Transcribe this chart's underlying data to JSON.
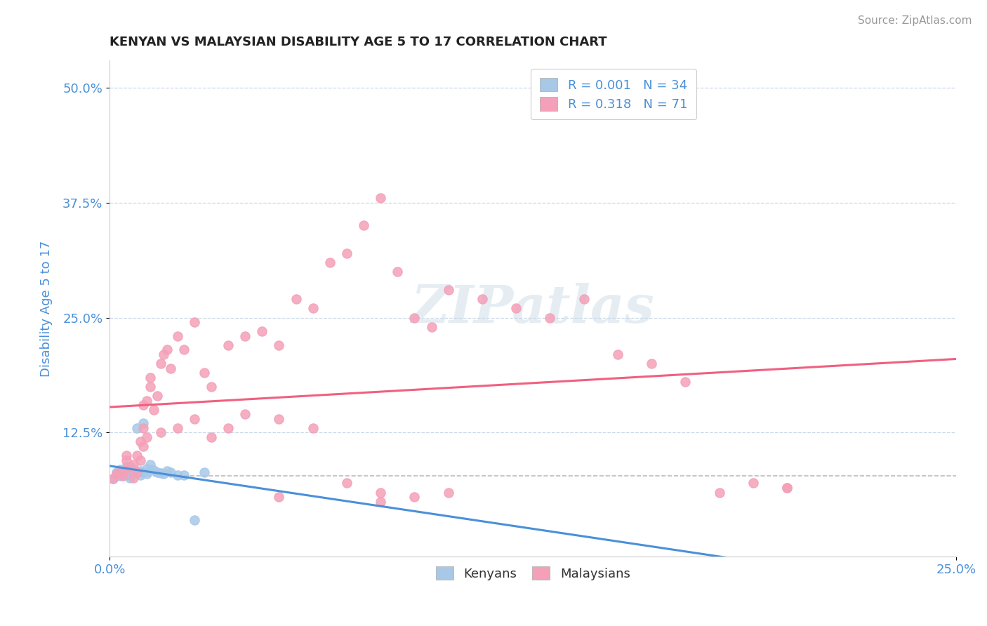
{
  "title": "KENYAN VS MALAYSIAN DISABILITY AGE 5 TO 17 CORRELATION CHART",
  "source": "Source: ZipAtlas.com",
  "xlabel_ticks": [
    "0.0%",
    "25.0%"
  ],
  "ylabel_ticks": [
    "12.5%",
    "25.0%",
    "37.5%",
    "50.0%"
  ],
  "ylabel_label": "Disability Age 5 to 17",
  "xlim": [
    0.0,
    0.25
  ],
  "ylim": [
    -0.01,
    0.53
  ],
  "legend_R1": "R = 0.001",
  "legend_N1": "N = 34",
  "legend_R2": "R = 0.318",
  "legend_N2": "N = 71",
  "kenyan_color": "#a8c8e8",
  "malaysian_color": "#f4a0b8",
  "kenyan_line_color": "#4a90d9",
  "malaysian_line_color": "#f06080",
  "title_color": "#222222",
  "axis_label_color": "#4a90d9",
  "tick_label_color": "#4a90d9",
  "background_color": "#ffffff",
  "grid_color": "#c8d8e8",
  "watermark_text": "ZIPatlas",
  "kenyan_x": [
    0.001,
    0.002,
    0.002,
    0.003,
    0.003,
    0.004,
    0.004,
    0.005,
    0.005,
    0.005,
    0.006,
    0.006,
    0.007,
    0.007,
    0.008,
    0.008,
    0.009,
    0.009,
    0.01,
    0.01,
    0.011,
    0.011,
    0.012,
    0.012,
    0.013,
    0.014,
    0.015,
    0.016,
    0.017,
    0.018,
    0.02,
    0.022,
    0.025,
    0.028
  ],
  "kenyan_y": [
    0.075,
    0.08,
    0.082,
    0.078,
    0.085,
    0.079,
    0.083,
    0.079,
    0.083,
    0.088,
    0.076,
    0.082,
    0.08,
    0.085,
    0.081,
    0.13,
    0.079,
    0.083,
    0.082,
    0.135,
    0.08,
    0.086,
    0.085,
    0.09,
    0.084,
    0.082,
    0.081,
    0.08,
    0.083,
    0.082,
    0.079,
    0.079,
    0.03,
    0.082
  ],
  "malaysian_x": [
    0.001,
    0.002,
    0.003,
    0.004,
    0.005,
    0.005,
    0.006,
    0.007,
    0.007,
    0.008,
    0.008,
    0.009,
    0.009,
    0.01,
    0.01,
    0.011,
    0.011,
    0.012,
    0.012,
    0.013,
    0.014,
    0.015,
    0.016,
    0.017,
    0.018,
    0.02,
    0.022,
    0.025,
    0.028,
    0.03,
    0.035,
    0.04,
    0.045,
    0.05,
    0.055,
    0.06,
    0.065,
    0.07,
    0.075,
    0.08,
    0.085,
    0.09,
    0.095,
    0.1,
    0.11,
    0.12,
    0.13,
    0.14,
    0.15,
    0.16,
    0.17,
    0.18,
    0.19,
    0.2,
    0.005,
    0.01,
    0.015,
    0.02,
    0.025,
    0.03,
    0.035,
    0.04,
    0.05,
    0.06,
    0.07,
    0.08,
    0.09,
    0.1,
    0.2,
    0.05,
    0.08
  ],
  "malaysian_y": [
    0.075,
    0.08,
    0.082,
    0.078,
    0.085,
    0.095,
    0.088,
    0.076,
    0.09,
    0.082,
    0.1,
    0.115,
    0.095,
    0.13,
    0.155,
    0.12,
    0.16,
    0.185,
    0.175,
    0.15,
    0.165,
    0.2,
    0.21,
    0.215,
    0.195,
    0.23,
    0.215,
    0.245,
    0.19,
    0.175,
    0.22,
    0.23,
    0.235,
    0.22,
    0.27,
    0.26,
    0.31,
    0.32,
    0.35,
    0.38,
    0.3,
    0.25,
    0.24,
    0.28,
    0.27,
    0.26,
    0.25,
    0.27,
    0.21,
    0.2,
    0.18,
    0.06,
    0.07,
    0.065,
    0.1,
    0.11,
    0.125,
    0.13,
    0.14,
    0.12,
    0.13,
    0.145,
    0.14,
    0.13,
    0.07,
    0.05,
    0.055,
    0.06,
    0.065,
    0.055,
    0.06
  ],
  "hline_y": 0.078,
  "hline_color": "#bbbbbb",
  "hline_style": "--"
}
